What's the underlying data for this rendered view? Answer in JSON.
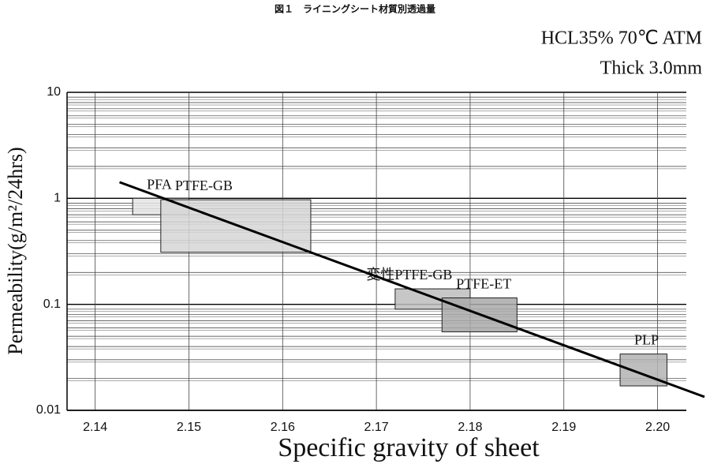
{
  "chart_data": {
    "type": "range_box",
    "title": "図１　ライニングシート材質別透過量",
    "subtitle": "HCL35%  70℃  ATM",
    "note": "Thick 3.0mm",
    "x_label": "Specific gravity of sheet",
    "y_label": "Permeability(g/m²/24hrs)",
    "xlim": [
      2.137,
      2.205
    ],
    "xticks": [
      2.14,
      2.15,
      2.16,
      2.17,
      2.18,
      2.19,
      2.2
    ],
    "xtick_labels": [
      "2.14",
      "2.15",
      "2.16",
      "2.17",
      "2.18",
      "2.19",
      "2.20"
    ],
    "ylim": [
      0.01,
      10
    ],
    "yticks": [
      0.01,
      0.1,
      1,
      10
    ],
    "y_scale": "log",
    "grid": true,
    "series": [
      {
        "name": "PFA",
        "color": "#e4e4e4",
        "x": [
          2.144,
          2.15
        ],
        "y": [
          0.7,
          1.0
        ]
      },
      {
        "name": "PTFE-GB",
        "color": "#d6d6d6",
        "x": [
          2.147,
          2.163
        ],
        "y": [
          0.31,
          0.97
        ]
      },
      {
        "name": "変性PTFE-GB",
        "color": "#bdbdbd",
        "x": [
          2.172,
          2.18
        ],
        "y": [
          0.09,
          0.14
        ]
      },
      {
        "name": "PTFE-ET",
        "color": "#a9a9a9",
        "x": [
          2.177,
          2.185
        ],
        "y": [
          0.055,
          0.115
        ]
      },
      {
        "name": "PLP",
        "color": "#b3b3b3",
        "x": [
          2.196,
          2.201
        ],
        "y": [
          0.017,
          0.034
        ]
      }
    ],
    "trend_line": {
      "x": [
        2.1426,
        2.205
      ],
      "y": [
        1.42,
        0.0134
      ],
      "color": "#000000"
    }
  }
}
